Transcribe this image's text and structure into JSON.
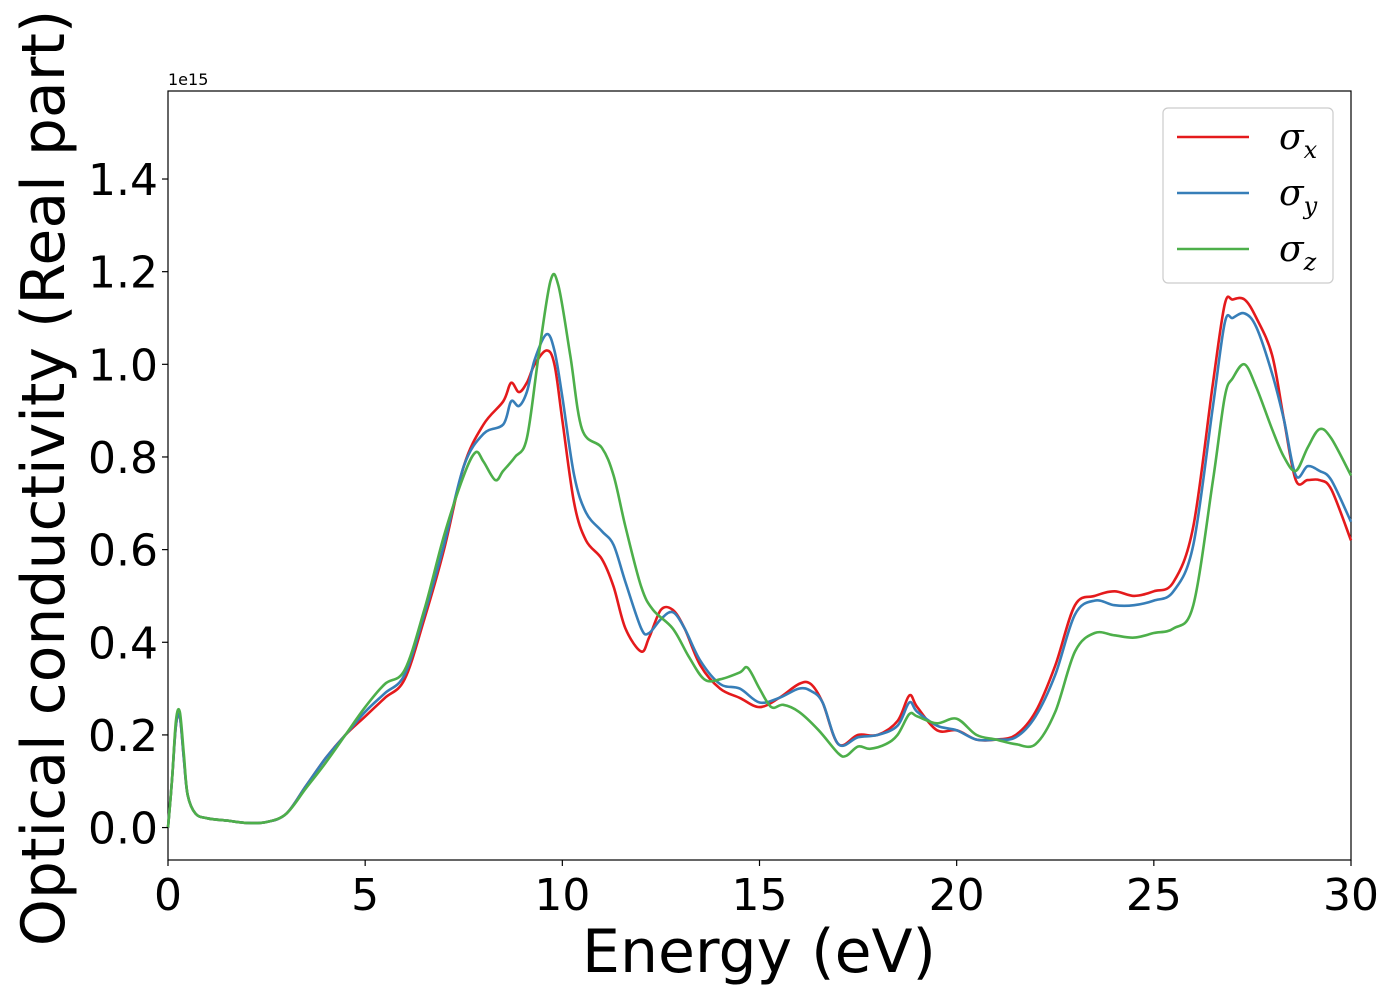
{
  "chart_data": {
    "type": "line",
    "title": "",
    "xlabel": "Energy (eV)",
    "ylabel": "Optical conductivity (Real part)",
    "y_offset_label": "1e15",
    "xlim": [
      0,
      30
    ],
    "ylim": [
      -0.07,
      1.59
    ],
    "x_ticks": [
      0,
      5,
      10,
      15,
      20,
      25,
      30
    ],
    "y_ticks": [
      0.0,
      0.2,
      0.4,
      0.6,
      0.8,
      1.0,
      1.2,
      1.4
    ],
    "x_tick_labels": [
      "0",
      "5",
      "10",
      "15",
      "20",
      "25",
      "30"
    ],
    "y_tick_labels": [
      "0.0",
      "0.2",
      "0.4",
      "0.6",
      "0.8",
      "1.0",
      "1.2",
      "1.4"
    ],
    "grid": false,
    "legend_position": "top-right",
    "series": [
      {
        "name": "σx",
        "symbol": "σ",
        "subscript": "x",
        "color": "#e41a1c",
        "x": [
          0,
          0.1,
          0.2,
          0.3,
          0.4,
          0.5,
          0.7,
          1,
          1.5,
          2,
          2.5,
          3,
          3.5,
          4,
          4.5,
          5,
          5.5,
          6,
          6.5,
          7,
          7.5,
          8,
          8.5,
          8.7,
          8.9,
          9.1,
          9.3,
          9.6,
          9.8,
          10,
          10.3,
          10.6,
          11,
          11.3,
          11.6,
          12,
          12.2,
          12.5,
          12.8,
          13.1,
          13.5,
          14,
          14.5,
          15,
          15.5,
          16,
          16.3,
          16.6,
          17,
          17.5,
          18,
          18.5,
          18.8,
          19,
          19.5,
          20,
          20.5,
          21,
          21.5,
          22,
          22.5,
          23,
          23.5,
          24,
          24.5,
          25,
          25.5,
          26,
          26.5,
          26.8,
          27,
          27.3,
          27.6,
          28,
          28.3,
          28.6,
          28.9,
          29.2,
          29.5,
          30
        ],
        "y": [
          0.0,
          0.1,
          0.22,
          0.24,
          0.15,
          0.07,
          0.03,
          0.02,
          0.015,
          0.01,
          0.012,
          0.03,
          0.09,
          0.15,
          0.2,
          0.24,
          0.28,
          0.32,
          0.45,
          0.6,
          0.78,
          0.87,
          0.92,
          0.96,
          0.94,
          0.96,
          1.0,
          1.03,
          1.0,
          0.88,
          0.7,
          0.62,
          0.58,
          0.52,
          0.43,
          0.38,
          0.41,
          0.47,
          0.47,
          0.43,
          0.35,
          0.3,
          0.28,
          0.26,
          0.28,
          0.31,
          0.31,
          0.27,
          0.18,
          0.2,
          0.2,
          0.23,
          0.285,
          0.26,
          0.21,
          0.21,
          0.19,
          0.19,
          0.2,
          0.25,
          0.35,
          0.48,
          0.5,
          0.51,
          0.5,
          0.51,
          0.53,
          0.65,
          0.96,
          1.13,
          1.14,
          1.14,
          1.1,
          1.02,
          0.88,
          0.75,
          0.75,
          0.75,
          0.73,
          0.62
        ]
      },
      {
        "name": "σy",
        "symbol": "σ",
        "subscript": "y",
        "color": "#377eb8",
        "x": [
          0,
          0.1,
          0.2,
          0.3,
          0.4,
          0.5,
          0.7,
          1,
          1.5,
          2,
          2.5,
          3,
          3.5,
          4,
          4.5,
          5,
          5.5,
          6,
          6.5,
          7,
          7.5,
          8,
          8.5,
          8.7,
          8.9,
          9.1,
          9.3,
          9.6,
          9.8,
          10,
          10.3,
          10.6,
          11,
          11.3,
          11.6,
          12,
          12.2,
          12.5,
          12.8,
          13.1,
          13.5,
          14,
          14.5,
          15,
          15.5,
          16,
          16.3,
          16.6,
          17,
          17.5,
          18,
          18.5,
          18.8,
          19,
          19.5,
          20,
          20.5,
          21,
          21.5,
          22,
          22.5,
          23,
          23.5,
          24,
          24.5,
          25,
          25.5,
          26,
          26.5,
          26.8,
          27,
          27.3,
          27.6,
          28,
          28.3,
          28.6,
          28.9,
          29.2,
          29.5,
          30
        ],
        "y": [
          0.0,
          0.1,
          0.22,
          0.24,
          0.15,
          0.07,
          0.03,
          0.02,
          0.015,
          0.01,
          0.012,
          0.03,
          0.09,
          0.15,
          0.2,
          0.25,
          0.29,
          0.33,
          0.46,
          0.61,
          0.78,
          0.85,
          0.87,
          0.92,
          0.91,
          0.94,
          1.01,
          1.065,
          1.03,
          0.93,
          0.76,
          0.68,
          0.64,
          0.61,
          0.53,
          0.43,
          0.42,
          0.45,
          0.465,
          0.43,
          0.36,
          0.31,
          0.3,
          0.27,
          0.28,
          0.3,
          0.295,
          0.27,
          0.18,
          0.195,
          0.2,
          0.22,
          0.27,
          0.25,
          0.22,
          0.21,
          0.19,
          0.19,
          0.195,
          0.24,
          0.33,
          0.46,
          0.49,
          0.48,
          0.48,
          0.49,
          0.51,
          0.61,
          0.91,
          1.09,
          1.1,
          1.11,
          1.08,
          0.98,
          0.88,
          0.76,
          0.78,
          0.77,
          0.75,
          0.66
        ]
      },
      {
        "name": "σz",
        "symbol": "σ",
        "subscript": "z",
        "color": "#4daf4a",
        "x": [
          0,
          0.1,
          0.2,
          0.3,
          0.4,
          0.5,
          0.7,
          1,
          1.5,
          2,
          2.5,
          3,
          3.5,
          4,
          4.5,
          5,
          5.5,
          6,
          6.5,
          7,
          7.5,
          7.8,
          8,
          8.3,
          8.5,
          8.8,
          9.1,
          9.4,
          9.7,
          9.9,
          10.2,
          10.5,
          11,
          11.3,
          11.6,
          12,
          12.3,
          12.8,
          13.2,
          13.6,
          14,
          14.5,
          14.7,
          15,
          15.3,
          15.6,
          16,
          16.5,
          17,
          17.2,
          17.5,
          17.8,
          18.2,
          18.5,
          18.8,
          19,
          19.5,
          20,
          20.5,
          21,
          21.5,
          22,
          22.5,
          23,
          23.5,
          24,
          24.5,
          25,
          25.5,
          26,
          26.5,
          26.8,
          27,
          27.3,
          27.6,
          28,
          28.3,
          28.6,
          28.9,
          29.2,
          29.5,
          30
        ],
        "y": [
          0.0,
          0.1,
          0.23,
          0.25,
          0.16,
          0.07,
          0.03,
          0.02,
          0.015,
          0.01,
          0.012,
          0.03,
          0.085,
          0.14,
          0.2,
          0.26,
          0.31,
          0.34,
          0.47,
          0.63,
          0.76,
          0.81,
          0.79,
          0.75,
          0.77,
          0.8,
          0.84,
          1.02,
          1.18,
          1.17,
          1.02,
          0.86,
          0.82,
          0.76,
          0.65,
          0.52,
          0.47,
          0.43,
          0.37,
          0.32,
          0.32,
          0.335,
          0.345,
          0.3,
          0.26,
          0.265,
          0.25,
          0.21,
          0.16,
          0.155,
          0.175,
          0.17,
          0.18,
          0.2,
          0.245,
          0.24,
          0.225,
          0.235,
          0.2,
          0.19,
          0.18,
          0.18,
          0.25,
          0.38,
          0.42,
          0.415,
          0.41,
          0.42,
          0.43,
          0.48,
          0.75,
          0.93,
          0.97,
          1.0,
          0.95,
          0.86,
          0.8,
          0.77,
          0.82,
          0.86,
          0.84,
          0.76
        ]
      }
    ]
  }
}
